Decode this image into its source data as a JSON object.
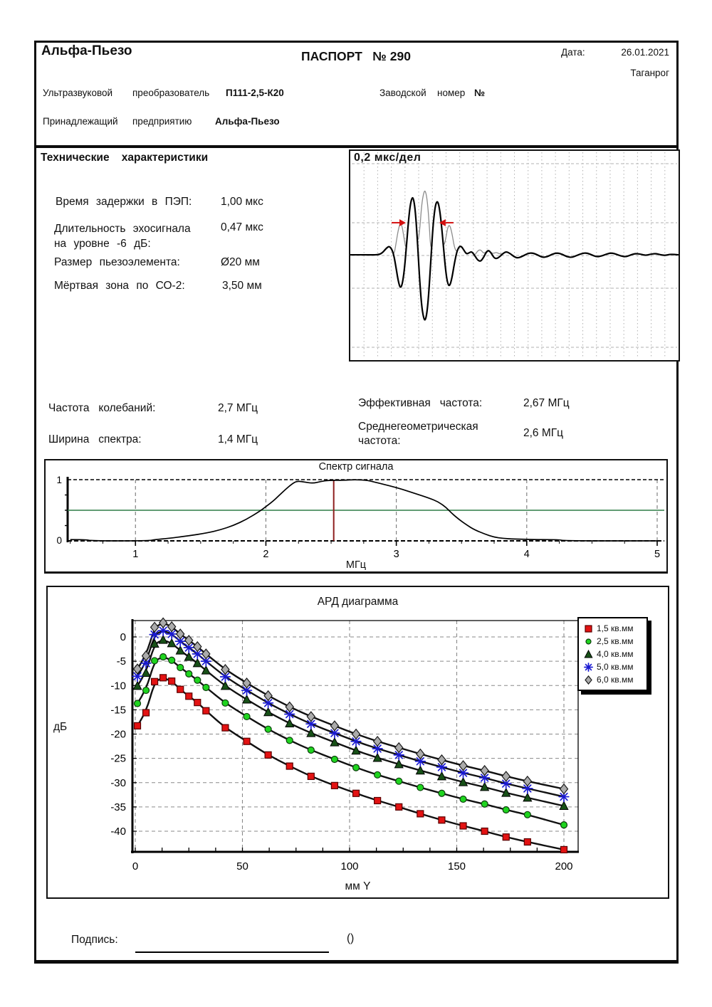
{
  "header": {
    "company": "Альфа-Пьезо",
    "doc_title": "ПАСПОРТ   № 290",
    "date_label": "Дата:",
    "date_value": "26.01.2021",
    "city": "Таганрог",
    "device_word1": "Ультразвуковой",
    "device_word2": "преобразователь",
    "device_model": "П111-2,5-К20",
    "serial_word1": "Заводской",
    "serial_word2": "номер",
    "serial_no": "№",
    "owner_word1": "Принадлежащий",
    "owner_word2": "предприятию",
    "owner_name": "Альфа-Пьезо"
  },
  "tech": {
    "heading": "Технические    характеристики",
    "rows": [
      {
        "label": "Время задержки в ПЭП:",
        "value": "1,00  мкс"
      },
      {
        "label": "Длительность эхосигнала\nна уровне -6 дБ:",
        "value": "0,47  мкс"
      },
      {
        "label": "Размер пьезоэлемента:",
        "value": "Ø20 мм"
      },
      {
        "label": "Мёртвая зона по СО-2:",
        "value": "3,50  мм"
      }
    ]
  },
  "freq": {
    "left": [
      {
        "label": "Частота   колебаний:",
        "value": "2,7  МГц"
      },
      {
        "label": "Ширина   спектра:",
        "value": "1,4  МГц"
      }
    ],
    "right": [
      {
        "label": "Эффективная   частота:",
        "value": "2,67  МГц"
      },
      {
        "label": "Среднегеометрическая\nчастота:",
        "value": "2,6  МГц"
      }
    ]
  },
  "signature": {
    "label": "Подпись:",
    "suffix": "()"
  },
  "chart_data": [
    {
      "type": "line",
      "name": "oscillogram",
      "label": "0,2 мкс/дел",
      "x_divisions": 24,
      "time_per_division_us": 0.2,
      "marker_level": 0.49,
      "markers_x": [
        0.154,
        0.286
      ],
      "rf": [
        [
          0,
          0.01
        ],
        [
          0.05,
          0.01
        ],
        [
          0.085,
          0.01
        ],
        [
          0.098,
          0.04
        ],
        [
          0.11,
          0.11
        ],
        [
          0.118,
          0.14
        ],
        [
          0.126,
          0.1
        ],
        [
          0.133,
          0
        ],
        [
          0.14,
          -0.2
        ],
        [
          0.146,
          -0.38
        ],
        [
          0.152,
          -0.49
        ],
        [
          0.158,
          -0.44
        ],
        [
          0.164,
          -0.25
        ],
        [
          0.17,
          0.08
        ],
        [
          0.176,
          0.45
        ],
        [
          0.182,
          0.74
        ],
        [
          0.188,
          0.87
        ],
        [
          0.193,
          0.85
        ],
        [
          0.199,
          0.62
        ],
        [
          0.205,
          0.18
        ],
        [
          0.211,
          -0.35
        ],
        [
          0.217,
          -0.74
        ],
        [
          0.223,
          -0.93
        ],
        [
          0.228,
          -0.98
        ],
        [
          0.234,
          -0.85
        ],
        [
          0.24,
          -0.5
        ],
        [
          0.246,
          -0.02
        ],
        [
          0.252,
          0.45
        ],
        [
          0.258,
          0.72
        ],
        [
          0.264,
          0.82
        ],
        [
          0.27,
          0.76
        ],
        [
          0.277,
          0.5
        ],
        [
          0.284,
          0.12
        ],
        [
          0.291,
          -0.25
        ],
        [
          0.297,
          -0.43
        ],
        [
          0.303,
          -0.46
        ],
        [
          0.31,
          -0.33
        ],
        [
          0.317,
          -0.12
        ],
        [
          0.324,
          0.05
        ],
        [
          0.331,
          0.13
        ],
        [
          0.338,
          0.14
        ],
        [
          0.346,
          0.08
        ],
        [
          0.354,
          0.02
        ],
        [
          0.362,
          0.04
        ],
        [
          0.37,
          0.06
        ],
        [
          0.379,
          0
        ],
        [
          0.388,
          -0.07
        ],
        [
          0.397,
          -0.09
        ],
        [
          0.406,
          -0.03
        ],
        [
          0.414,
          0.05
        ],
        [
          0.421,
          0.08
        ],
        [
          0.429,
          0.04
        ],
        [
          0.437,
          -0.03
        ],
        [
          0.445,
          -0.05
        ],
        [
          0.455,
          -0.02
        ],
        [
          0.465,
          0.03
        ],
        [
          0.475,
          0.06
        ],
        [
          0.487,
          0.03
        ],
        [
          0.499,
          -0.02
        ],
        [
          0.511,
          -0.04
        ],
        [
          0.525,
          -0.01
        ],
        [
          0.54,
          0.03
        ],
        [
          0.555,
          0.04
        ],
        [
          0.57,
          0.01
        ],
        [
          0.585,
          -0.03
        ],
        [
          0.6,
          -0.02
        ],
        [
          0.615,
          0.02
        ],
        [
          0.63,
          0.04
        ],
        [
          0.645,
          0.02
        ],
        [
          0.66,
          -0.02
        ],
        [
          0.675,
          -0.03
        ],
        [
          0.69,
          0
        ],
        [
          0.705,
          0.03
        ],
        [
          0.72,
          0.04
        ],
        [
          0.735,
          0.01
        ],
        [
          0.75,
          -0.02
        ],
        [
          0.765,
          -0.01
        ],
        [
          0.78,
          0.02
        ],
        [
          0.795,
          0.04
        ],
        [
          0.81,
          0.02
        ],
        [
          0.825,
          -0.01
        ],
        [
          0.84,
          -0.02
        ],
        [
          0.855,
          0.01
        ],
        [
          0.87,
          0.03
        ],
        [
          0.885,
          0.02
        ],
        [
          0.9,
          0
        ],
        [
          0.915,
          0.02
        ],
        [
          0.93,
          0.03
        ],
        [
          0.945,
          0.01
        ],
        [
          0.96,
          0
        ],
        [
          0.975,
          0.02
        ],
        [
          1,
          0.01
        ]
      ],
      "colors": {
        "trace": "#000000",
        "envelope": "#8c8c8c",
        "marker": "#d41111",
        "grid": "#b0b0b0"
      }
    },
    {
      "type": "line",
      "name": "spectrum",
      "title": "Спектр сигнала",
      "xlabel": "МГц",
      "xlim": [
        0.48,
        5.05
      ],
      "ylim": [
        0,
        1
      ],
      "xticks": [
        1,
        2,
        3,
        4,
        5
      ],
      "x_minor_step": 0.25,
      "yticks": [
        1,
        0
      ],
      "threshold_level": 0.5,
      "cursor_mhz": 2.52,
      "curve": [
        [
          0.5,
          0.02
        ],
        [
          0.62,
          0.02
        ],
        [
          0.66,
          0
        ],
        [
          1.1,
          0
        ],
        [
          1.15,
          0.02
        ],
        [
          1.25,
          0.04
        ],
        [
          1.4,
          0.08
        ],
        [
          1.55,
          0.13
        ],
        [
          1.65,
          0.18
        ],
        [
          1.75,
          0.25
        ],
        [
          1.85,
          0.35
        ],
        [
          1.95,
          0.48
        ],
        [
          2.0,
          0.56
        ],
        [
          2.05,
          0.64
        ],
        [
          2.1,
          0.74
        ],
        [
          2.15,
          0.84
        ],
        [
          2.2,
          0.93
        ],
        [
          2.24,
          0.98
        ],
        [
          2.3,
          0.96
        ],
        [
          2.36,
          0.94
        ],
        [
          2.42,
          0.97
        ],
        [
          2.48,
          0.99
        ],
        [
          2.6,
          0.99
        ],
        [
          2.68,
          1.0
        ],
        [
          2.78,
          0.99
        ],
        [
          2.85,
          0.95
        ],
        [
          2.95,
          0.9
        ],
        [
          3.05,
          0.84
        ],
        [
          3.15,
          0.77
        ],
        [
          3.25,
          0.7
        ],
        [
          3.32,
          0.64
        ],
        [
          3.38,
          0.55
        ],
        [
          3.42,
          0.46
        ],
        [
          3.48,
          0.35
        ],
        [
          3.54,
          0.26
        ],
        [
          3.6,
          0.18
        ],
        [
          3.68,
          0.11
        ],
        [
          3.75,
          0.06
        ],
        [
          3.82,
          0.04
        ],
        [
          3.9,
          0.03
        ],
        [
          4.0,
          0.025
        ],
        [
          4.1,
          0.02
        ],
        [
          4.25,
          0.02
        ],
        [
          4.28,
          0
        ],
        [
          5.0,
          0
        ]
      ],
      "colors": {
        "curve": "#000000",
        "threshold": "#2e7d46",
        "cursor": "#8e1f1f",
        "grid": "#777777"
      }
    },
    {
      "type": "line",
      "name": "ard",
      "title": "АРД диаграмма",
      "xlabel": "мм Y",
      "ylabel": "дБ",
      "xlim": [
        0,
        207
      ],
      "ylim": [
        -44.5,
        3.5
      ],
      "xticks": [
        0,
        50,
        100,
        150,
        200
      ],
      "yticks": [
        0,
        -5,
        -10,
        -15,
        -20,
        -25,
        -30,
        -35,
        -40
      ],
      "x_minor_step": 12.5,
      "legend_position": "top-right",
      "x": [
        1,
        5,
        9,
        13,
        17,
        21,
        25,
        29,
        33,
        42,
        52,
        62,
        72,
        82,
        93,
        103,
        113,
        123,
        133,
        143,
        153,
        163,
        173,
        183,
        200
      ],
      "series": [
        {
          "name": "1,5 кв.мм",
          "marker": "square",
          "color": "#e31212",
          "values": [
            -18.3,
            -15.6,
            -9.2,
            -8.4,
            -9.1,
            -10.8,
            -12.2,
            -13.5,
            -15.2,
            -18.7,
            -21.5,
            -24.3,
            -26.6,
            -28.7,
            -30.6,
            -32.2,
            -33.7,
            -35.0,
            -36.4,
            -37.7,
            -38.9,
            -40.0,
            -41.2,
            -42.2,
            -43.8
          ]
        },
        {
          "name": "2,5 кв.мм",
          "marker": "circle",
          "color": "#1fd41f",
          "values": [
            -13.7,
            -11.0,
            -4.9,
            -4.1,
            -4.8,
            -6.3,
            -7.6,
            -8.9,
            -10.4,
            -13.6,
            -16.4,
            -19.0,
            -21.3,
            -23.3,
            -25.2,
            -26.9,
            -28.4,
            -29.7,
            -31.0,
            -32.2,
            -33.4,
            -34.4,
            -35.6,
            -36.6,
            -38.7
          ]
        },
        {
          "name": "4,0 кв.мм",
          "marker": "triangle",
          "color": "#175017",
          "values": [
            -10.1,
            -7.4,
            -1.4,
            -0.6,
            -1.3,
            -2.8,
            -4.1,
            -5.4,
            -6.9,
            -10.1,
            -12.9,
            -15.5,
            -17.8,
            -19.8,
            -21.7,
            -23.4,
            -24.9,
            -26.2,
            -27.5,
            -28.7,
            -29.9,
            -30.9,
            -32.1,
            -33.1,
            -34.8
          ]
        },
        {
          "name": "5,0 кв.мм",
          "marker": "asterisk",
          "color": "#1a1ad2",
          "values": [
            -8.1,
            -5.4,
            0.5,
            1.3,
            0.6,
            -0.9,
            -2.2,
            -3.5,
            -5.0,
            -8.2,
            -11.0,
            -13.6,
            -15.9,
            -17.9,
            -19.8,
            -21.5,
            -23.0,
            -24.3,
            -25.6,
            -26.8,
            -28.0,
            -29.0,
            -30.2,
            -31.2,
            -32.9
          ]
        },
        {
          "name": "6,0 кв.мм",
          "marker": "diamond",
          "color": "#ababab",
          "values": [
            -6.6,
            -3.9,
            2.0,
            2.9,
            2.1,
            0.6,
            -0.7,
            -2.0,
            -3.5,
            -6.7,
            -9.5,
            -12.1,
            -14.4,
            -16.4,
            -18.3,
            -20.0,
            -21.5,
            -22.8,
            -24.1,
            -25.3,
            -26.5,
            -27.5,
            -28.7,
            -29.7,
            -31.3
          ]
        }
      ],
      "colors": {
        "line": "#111111",
        "grid": "#8a8a8a"
      }
    }
  ]
}
